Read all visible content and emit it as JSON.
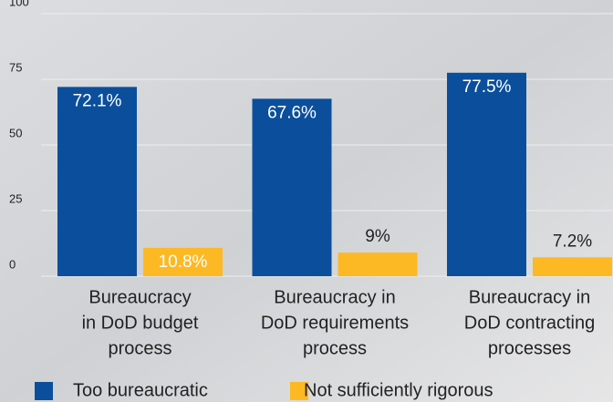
{
  "chart_data": {
    "type": "bar",
    "categories": [
      [
        "Bureaucracy",
        "in DoD budget",
        "process"
      ],
      [
        "Bureaucracy in",
        "DoD requirements",
        "process"
      ],
      [
        "Bureaucracy in",
        "DoD contracting",
        "processes"
      ]
    ],
    "series": [
      {
        "name": "Too bureaucratic",
        "color": "#0b4f9c",
        "values": [
          72.1,
          67.6,
          77.5
        ],
        "value_labels": [
          "72.1%",
          "67.6%",
          "77.5%"
        ]
      },
      {
        "name": "Not sufficiently rigorous",
        "color": "#fdb924",
        "values": [
          10.8,
          9,
          7.2
        ],
        "value_labels": [
          "10.8%",
          "9%",
          "7.2%"
        ]
      }
    ],
    "ylim": [
      0,
      100
    ],
    "yticks": [
      0,
      25,
      50,
      75,
      100
    ],
    "grid": true
  }
}
